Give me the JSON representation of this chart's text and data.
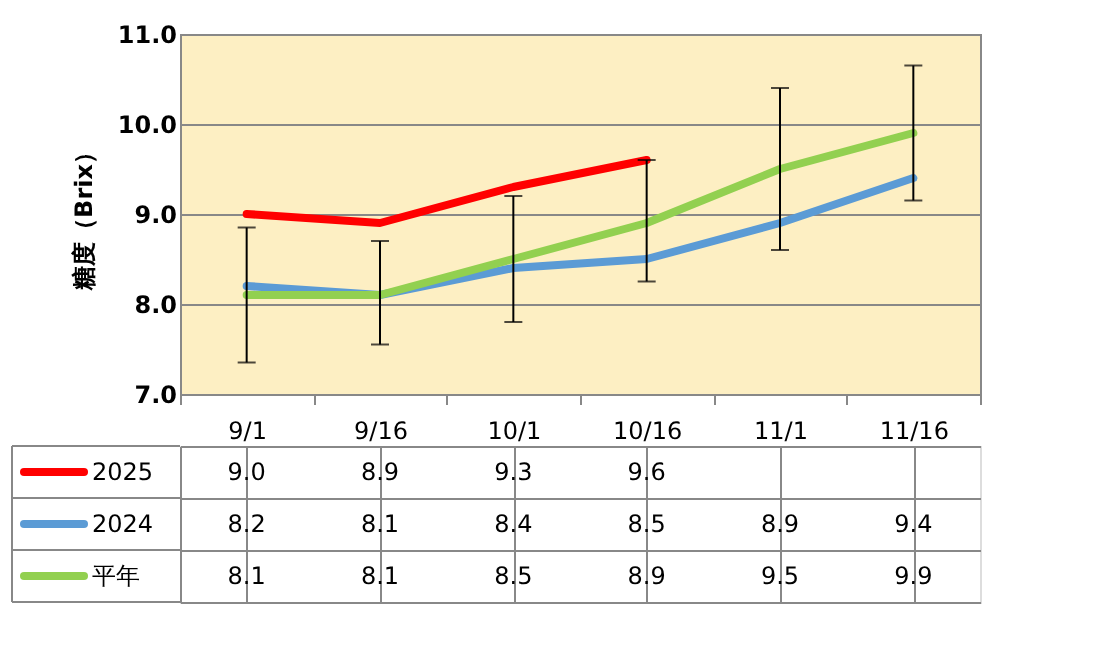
{
  "chart_data": {
    "type": "line",
    "ylabel": "糖度（Brix）",
    "categories": [
      "9/1",
      "9/16",
      "10/1",
      "10/16",
      "11/1",
      "11/16"
    ],
    "ylim": [
      7.0,
      11.0
    ],
    "yticks": [
      {
        "value": 7,
        "label": "7.0"
      },
      {
        "value": 8,
        "label": "8.0"
      },
      {
        "value": 9,
        "label": "9.0"
      },
      {
        "value": 10,
        "label": "10.0"
      },
      {
        "value": 11,
        "label": "11.0"
      }
    ],
    "grid": "y",
    "legend": "bottom",
    "marker": "none",
    "line_style": "solid",
    "series": [
      {
        "name": "2025",
        "color": "#ff0000",
        "values": [
          9.0,
          8.9,
          9.3,
          9.6,
          null,
          null
        ],
        "value_labels": [
          "9.0",
          "8.9",
          "9.3",
          "9.6",
          null,
          null
        ]
      },
      {
        "name": "2024",
        "color": "#5b9bd5",
        "values": [
          8.2,
          8.1,
          8.4,
          8.5,
          8.9,
          9.4
        ],
        "value_labels": [
          "8.2",
          "8.1",
          "8.4",
          "8.5",
          "8.9",
          "9.4"
        ]
      },
      {
        "name": "平年",
        "color": "#92d050",
        "values": [
          8.1,
          8.1,
          8.5,
          8.9,
          9.5,
          9.9
        ],
        "value_labels": [
          "8.1",
          "8.1",
          "8.5",
          "8.9",
          "9.5",
          "9.9"
        ],
        "errors": [
          [
            7.35,
            8.85
          ],
          [
            7.55,
            8.7
          ],
          [
            7.8,
            9.2
          ],
          [
            8.25,
            9.6
          ],
          [
            8.6,
            10.4
          ],
          [
            9.15,
            10.65
          ]
        ]
      }
    ]
  }
}
